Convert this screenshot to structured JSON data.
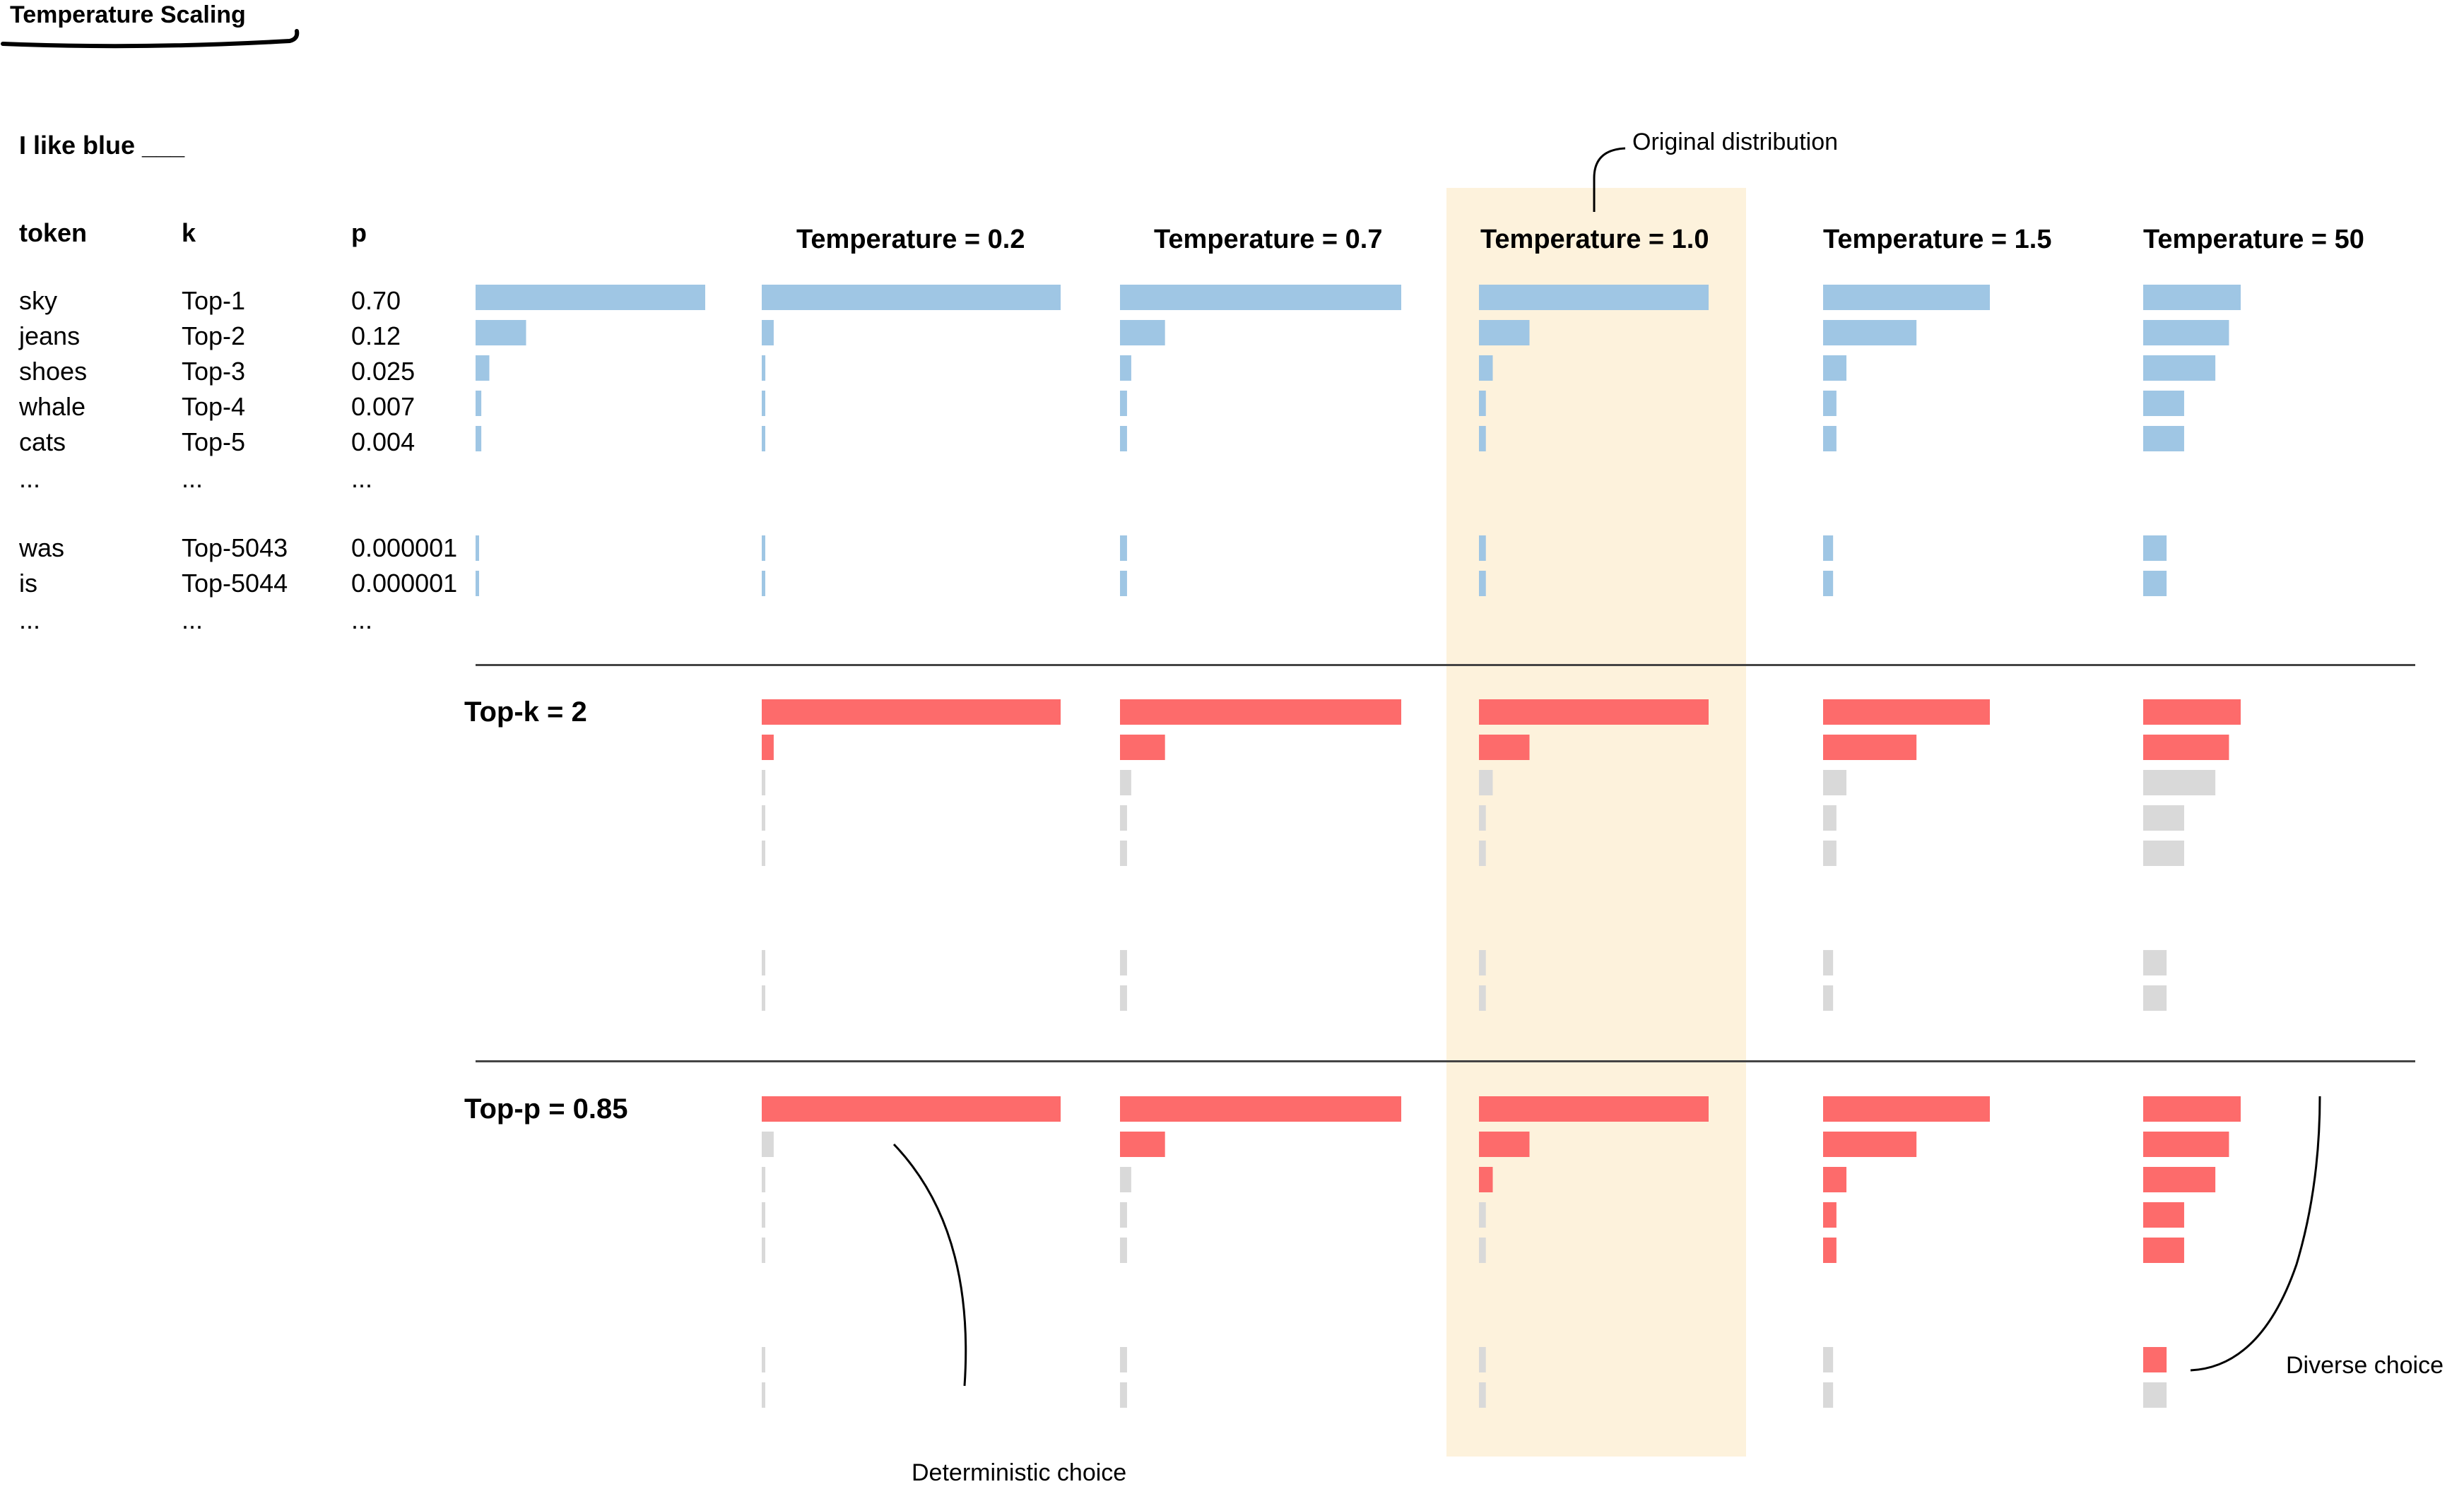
{
  "title": "Temperature Scaling",
  "prompt": "I like blue ___",
  "table": {
    "headers": {
      "token": "token",
      "k": "k",
      "p": "p"
    },
    "rows": [
      {
        "token": "sky",
        "k": "Top-1",
        "p": "0.70"
      },
      {
        "token": "jeans",
        "k": "Top-2",
        "p": "0.12"
      },
      {
        "token": "shoes",
        "k": "Top-3",
        "p": "0.025"
      },
      {
        "token": "whale",
        "k": "Top-4",
        "p": "0.007"
      },
      {
        "token": "cats",
        "k": "Top-5",
        "p": "0.004"
      },
      {
        "token": "...",
        "k": "...",
        "p": "..."
      },
      {
        "token": "was",
        "k": "Top-5043",
        "p": "0.000001"
      },
      {
        "token": "is",
        "k": "Top-5044",
        "p": "0.000001"
      },
      {
        "token": "...",
        "k": "...",
        "p": "..."
      }
    ]
  },
  "columns": [
    {
      "label": "Temperature = 0.2"
    },
    {
      "label": "Temperature = 0.7"
    },
    {
      "label": "Temperature = 1.0"
    },
    {
      "label": "Temperature = 1.5"
    },
    {
      "label": "Temperature = 50"
    }
  ],
  "sections": [
    {
      "label": "",
      "fill": "blue"
    },
    {
      "label": "Top-k = 2",
      "fill": "topk"
    },
    {
      "label": "Top-p = 0.85",
      "fill": "topp"
    }
  ],
  "annotations": {
    "original": "Original distribution",
    "deterministic": "Deterministic choice",
    "diverse": "Diverse choice"
  },
  "chart_data": {
    "type": "bar",
    "original_probabilities": [
      0.7,
      0.12,
      0.025,
      0.007,
      0.004,
      1e-06,
      1e-06
    ],
    "relative_bar_lengths": {
      "original": [
        1.0,
        0.22,
        0.06,
        0.025,
        0.025,
        0.015,
        0.015
      ],
      "Temperature = 0.2": [
        1.0,
        0.04,
        0.012,
        0.01,
        0.01,
        0.01,
        0.01
      ],
      "Temperature = 0.7": [
        1.0,
        0.16,
        0.04,
        0.025,
        0.025,
        0.025,
        0.025
      ],
      "Temperature = 1.0": [
        1.0,
        0.22,
        0.06,
        0.03,
        0.03,
        0.03,
        0.03
      ],
      "Temperature = 1.5": [
        1.0,
        0.56,
        0.14,
        0.08,
        0.08,
        0.06,
        0.06
      ],
      "Temperature = 50": [
        1.0,
        0.88,
        0.74,
        0.42,
        0.42,
        0.24,
        0.24
      ]
    },
    "top_k_selected": [
      true,
      true,
      false,
      false,
      false,
      false,
      false
    ],
    "top_p_selected_counts": {
      "Temperature = 0.2": 1,
      "Temperature = 0.7": 2,
      "Temperature = 1.0": 3,
      "Temperature = 1.5": 5,
      "Temperature = 50": 6
    }
  },
  "colors": {
    "blue": "#9fc6e4",
    "red": "#fd6b6b",
    "grey": "#d9d9d9",
    "highlight": "#fdf2dc"
  }
}
